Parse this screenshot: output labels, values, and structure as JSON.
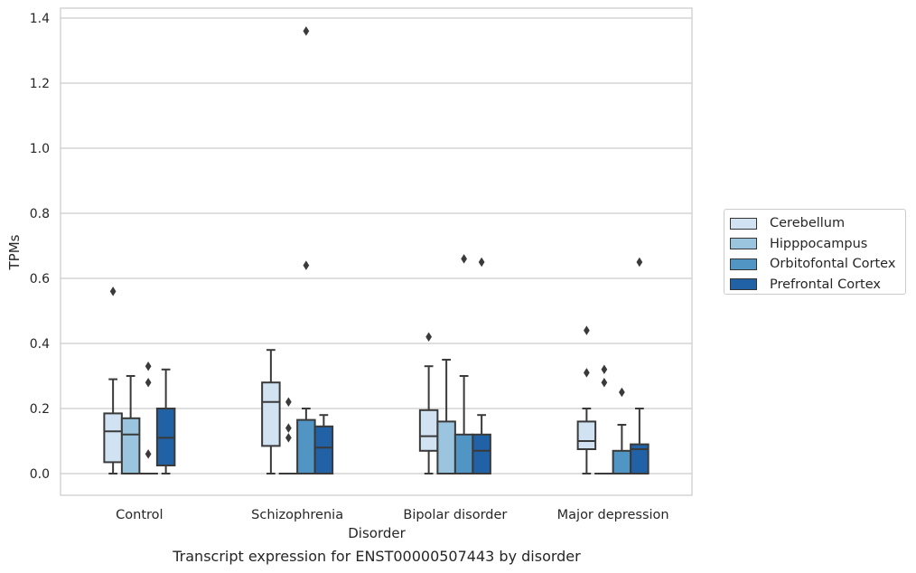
{
  "caption": "Transcript expression for ENST00000507443 by disorder",
  "chart_data": {
    "type": "box",
    "xlabel": "Disorder",
    "ylabel": "TPMs",
    "ylim": [
      -0.065,
      1.43
    ],
    "yticks": [
      0.0,
      0.2,
      0.4,
      0.6,
      0.8,
      1.0,
      1.2,
      1.4
    ],
    "ytick_labels": [
      "0.0",
      "0.2",
      "0.4",
      "0.6",
      "0.8",
      "1.0",
      "1.2",
      "1.4"
    ],
    "grid": "horizontal",
    "legend_placement": "right",
    "categories": [
      "Control",
      "Schizophrenia",
      "Bipolar disorder",
      "Major depression"
    ],
    "series": [
      {
        "name": "Cerebellum",
        "color": "#d1e2f2",
        "boxes": [
          {
            "whislo": 0.0,
            "q1": 0.035,
            "med": 0.13,
            "q3": 0.185,
            "whishi": 0.29,
            "fliers": [
              0.56
            ]
          },
          {
            "whislo": 0.0,
            "q1": 0.085,
            "med": 0.22,
            "q3": 0.28,
            "whishi": 0.38,
            "fliers": []
          },
          {
            "whislo": 0.0,
            "q1": 0.07,
            "med": 0.115,
            "q3": 0.195,
            "whishi": 0.33,
            "fliers": [
              0.42
            ]
          },
          {
            "whislo": 0.0,
            "q1": 0.075,
            "med": 0.1,
            "q3": 0.16,
            "whishi": 0.2,
            "fliers": [
              0.31,
              0.44
            ]
          }
        ]
      },
      {
        "name": "Hipppocampus",
        "color": "#9bc5de",
        "boxes": [
          {
            "whislo": 0.0,
            "q1": 0.0,
            "med": 0.12,
            "q3": 0.17,
            "whishi": 0.3,
            "fliers": []
          },
          {
            "whislo": 0.0,
            "q1": 0.0,
            "med": 0.0,
            "q3": 0.0,
            "whishi": 0.0,
            "fliers": [
              0.11,
              0.14,
              0.22
            ]
          },
          {
            "whislo": 0.0,
            "q1": 0.0,
            "med": 0.0,
            "q3": 0.16,
            "whishi": 0.35,
            "fliers": []
          },
          {
            "whislo": 0.0,
            "q1": 0.0,
            "med": 0.0,
            "q3": 0.0,
            "whishi": 0.0,
            "fliers": [
              0.28,
              0.32
            ]
          }
        ]
      },
      {
        "name": "Orbitofontal Cortex",
        "color": "#5195c5",
        "boxes": [
          {
            "whislo": 0.0,
            "q1": 0.0,
            "med": 0.0,
            "q3": 0.0,
            "whishi": 0.0,
            "fliers": [
              0.06,
              0.28,
              0.33
            ]
          },
          {
            "whislo": 0.0,
            "q1": 0.0,
            "med": 0.0,
            "q3": 0.165,
            "whishi": 0.2,
            "fliers": [
              0.64,
              1.36
            ]
          },
          {
            "whislo": 0.0,
            "q1": 0.0,
            "med": 0.0,
            "q3": 0.12,
            "whishi": 0.3,
            "fliers": [
              0.66
            ]
          },
          {
            "whislo": 0.0,
            "q1": 0.0,
            "med": 0.0,
            "q3": 0.07,
            "whishi": 0.15,
            "fliers": [
              0.25
            ]
          }
        ]
      },
      {
        "name": "Prefrontal Cortex",
        "color": "#2161a5",
        "boxes": [
          {
            "whislo": 0.0,
            "q1": 0.025,
            "med": 0.11,
            "q3": 0.2,
            "whishi": 0.32,
            "fliers": []
          },
          {
            "whislo": 0.0,
            "q1": 0.0,
            "med": 0.08,
            "q3": 0.145,
            "whishi": 0.18,
            "fliers": []
          },
          {
            "whislo": 0.0,
            "q1": 0.0,
            "med": 0.07,
            "q3": 0.12,
            "whishi": 0.18,
            "fliers": [
              0.65
            ]
          },
          {
            "whislo": 0.0,
            "q1": 0.0,
            "med": 0.075,
            "q3": 0.09,
            "whishi": 0.2,
            "fliers": [
              0.65
            ]
          }
        ]
      }
    ]
  }
}
